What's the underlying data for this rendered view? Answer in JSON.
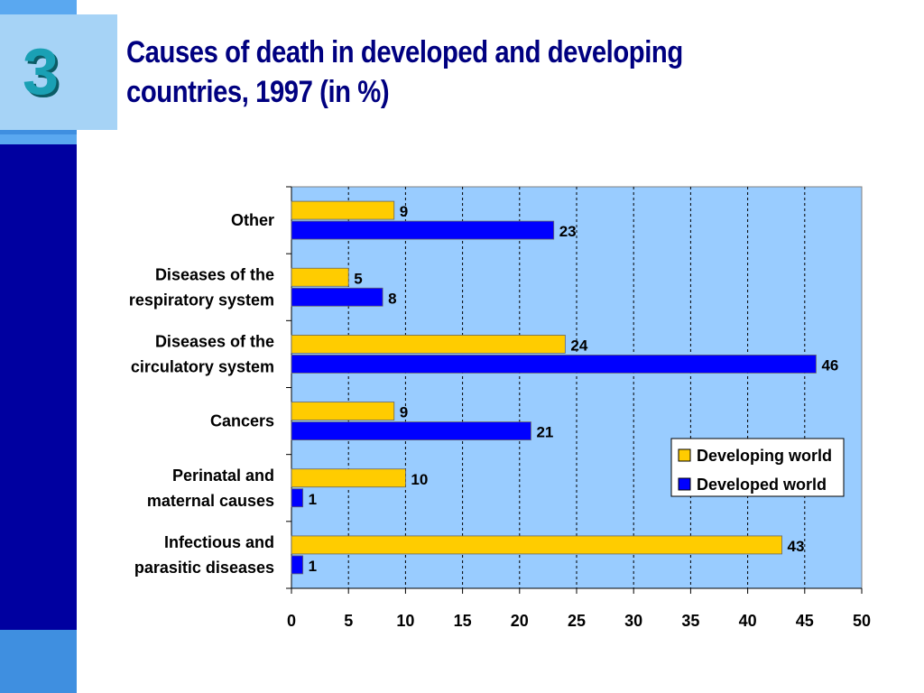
{
  "slide": {
    "number": "3",
    "title": "Causes of death in developed and developing countries, 1997 (in %)"
  },
  "colors": {
    "developing": "#ffcc00",
    "developed": "#0000ff",
    "plot_background": "#99ccff",
    "sidebar_dark": "#0000a0",
    "sidebar_light": "#5aa8f0",
    "title": "#000080"
  },
  "chart_data": {
    "type": "bar",
    "orientation": "horizontal",
    "title": "",
    "xlabel": "",
    "ylabel": "",
    "xlim": [
      0,
      50
    ],
    "ticks": [
      0,
      5,
      10,
      15,
      20,
      25,
      30,
      35,
      40,
      45,
      50
    ],
    "grid": "vertical dashed",
    "legend_position": "bottom-right",
    "categories": [
      [
        "Infectious and",
        "parasitic diseases"
      ],
      [
        "Perinatal and",
        "maternal causes"
      ],
      [
        "Cancers"
      ],
      [
        "Diseases of the",
        "circulatory system"
      ],
      [
        "Diseases of the",
        "respiratory system"
      ],
      [
        "Other"
      ]
    ],
    "series": [
      {
        "name": "Developing world",
        "color": "#ffcc00",
        "values": [
          43,
          10,
          9,
          24,
          5,
          9
        ]
      },
      {
        "name": "Developed world",
        "color": "#0000ff",
        "values": [
          1,
          1,
          21,
          46,
          8,
          23
        ]
      }
    ]
  }
}
